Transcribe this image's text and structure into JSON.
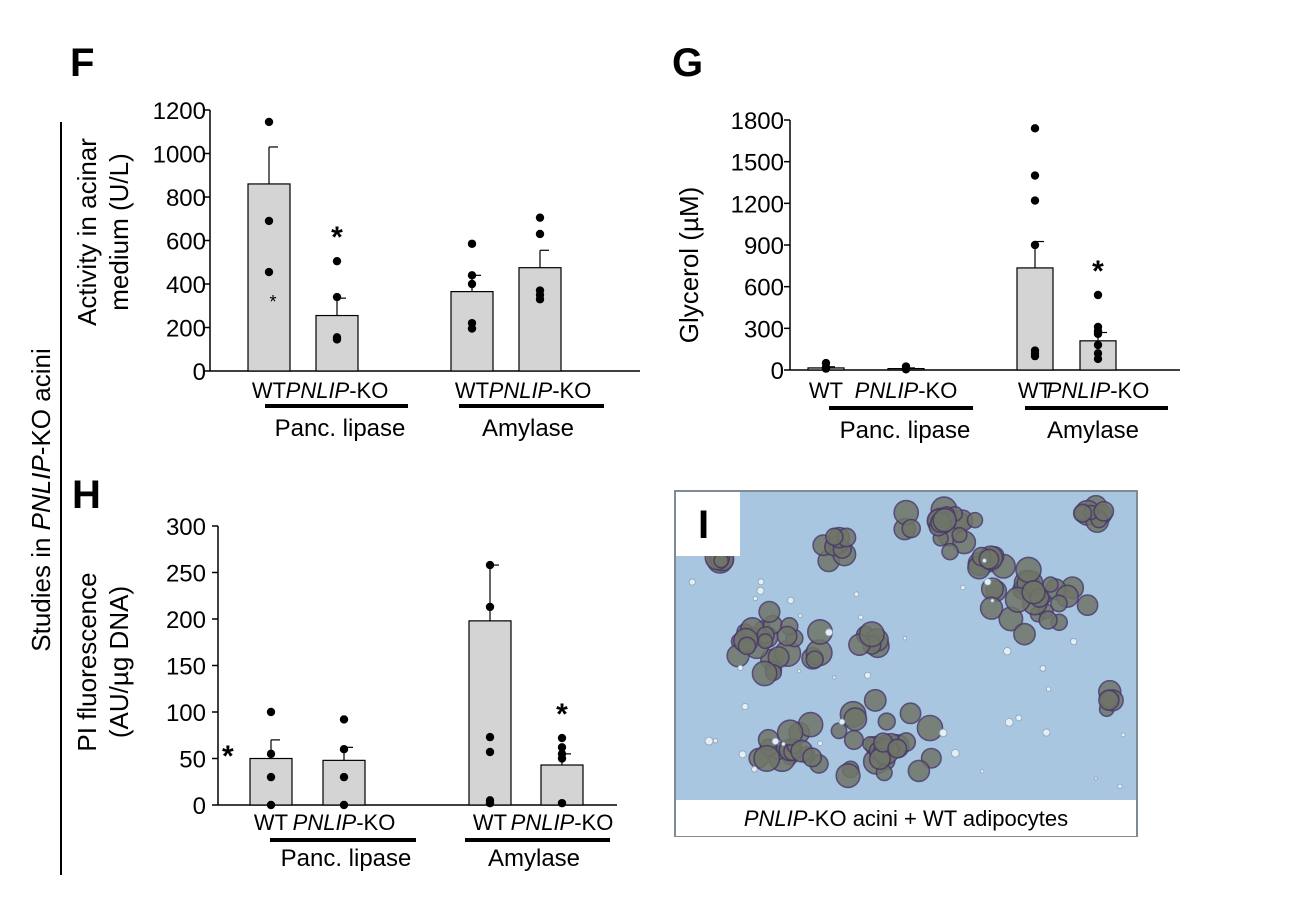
{
  "figure": {
    "side_label_pre": "Studies in ",
    "side_label_em": "PNLIP",
    "side_label_post": "-KO acini"
  },
  "chart_data": [
    {
      "panel": "F",
      "type": "bar",
      "ylabel_line1": "Activity in acinar",
      "ylabel_line2": "medium (U/L)",
      "ylim": [
        0,
        1200
      ],
      "yticks": [
        0,
        200,
        400,
        600,
        800,
        1000,
        1200
      ],
      "groups": [
        {
          "name": "Panc. lipase",
          "bars": [
            {
              "label_em": "",
              "label_rest": "WT",
              "value": 860,
              "error": 170,
              "points": [
                1145,
                690,
                455
              ],
              "star": "",
              "mini_star": true
            },
            {
              "label_em": "PNLIP",
              "label_rest": "-KO",
              "value": 255,
              "error": 80,
              "points": [
                505,
                340,
                155,
                145
              ],
              "star": "*",
              "mini_star": false
            }
          ]
        },
        {
          "name": "Amylase",
          "bars": [
            {
              "label_em": "",
              "label_rest": "WT",
              "value": 365,
              "error": 75,
              "points": [
                585,
                440,
                400,
                220,
                195
              ],
              "star": "",
              "mini_star": false
            },
            {
              "label_em": "PNLIP",
              "label_rest": "-KO",
              "value": 475,
              "error": 80,
              "points": [
                705,
                630,
                370,
                350,
                330
              ],
              "star": "",
              "mini_star": false
            }
          ]
        }
      ]
    },
    {
      "panel": "G",
      "type": "bar",
      "ylabel_pre": "Glycerol (",
      "ylabel_unit": "µM",
      "ylabel_post": ")",
      "ylim": [
        0,
        1800
      ],
      "yticks": [
        0,
        300,
        600,
        900,
        1200,
        1500,
        1800
      ],
      "groups": [
        {
          "name": "Panc. lipase",
          "bars": [
            {
              "label_em": "",
              "label_rest": "WT",
              "value": 15,
              "error": 8,
              "points": [
                50,
                20,
                10
              ],
              "star": "",
              "mini_star": false
            },
            {
              "label_em": "PNLIP",
              "label_rest": "-KO",
              "value": 10,
              "error": 5,
              "points": [
                25,
                10,
                5
              ],
              "star": "",
              "mini_star": false
            }
          ]
        },
        {
          "name": "Amylase",
          "bars": [
            {
              "label_em": "",
              "label_rest": "WT",
              "value": 735,
              "error": 190,
              "points": [
                1740,
                1400,
                1220,
                900,
                140,
                120,
                100
              ],
              "star": "",
              "mini_star": false
            },
            {
              "label_em": "PNLIP",
              "label_rest": "-KO",
              "value": 210,
              "error": 60,
              "points": [
                540,
                310,
                280,
                260,
                180,
                120,
                80
              ],
              "star": "*",
              "mini_star": false
            }
          ]
        }
      ]
    },
    {
      "panel": "H",
      "type": "bar",
      "ylabel_line1": "PI fluorescence",
      "ylabel_line2": "(AU/µg DNA)",
      "ylim": [
        0,
        300
      ],
      "yticks": [
        0,
        50,
        100,
        150,
        200,
        250,
        300
      ],
      "left_star": "*",
      "groups": [
        {
          "name": "Panc. lipase",
          "bars": [
            {
              "label_em": "",
              "label_rest": "WT",
              "value": 50,
              "error": 20,
              "points": [
                100,
                55,
                30,
                0
              ],
              "star": "",
              "mini_star": false
            },
            {
              "label_em": "PNLIP",
              "label_rest": "-KO",
              "value": 48,
              "error": 14,
              "points": [
                92,
                60,
                30,
                0
              ],
              "star": "",
              "mini_star": false
            }
          ]
        },
        {
          "name": "Amylase",
          "bars": [
            {
              "label_em": "",
              "label_rest": "WT",
              "value": 198,
              "error": 60,
              "points": [
                258,
                213,
                73,
                57,
                5,
                2
              ],
              "star": "",
              "mini_star": false
            },
            {
              "label_em": "PNLIP",
              "label_rest": "-KO",
              "value": 43,
              "error": 12,
              "points": [
                72,
                62,
                55,
                50,
                2
              ],
              "star": "*",
              "mini_star": false
            }
          ]
        }
      ]
    }
  ],
  "panel_i": {
    "label": "I",
    "caption_em": "PNLIP",
    "caption_rest": "-KO acini + WT adipocytes",
    "bg_color": "#a9c6e0"
  }
}
